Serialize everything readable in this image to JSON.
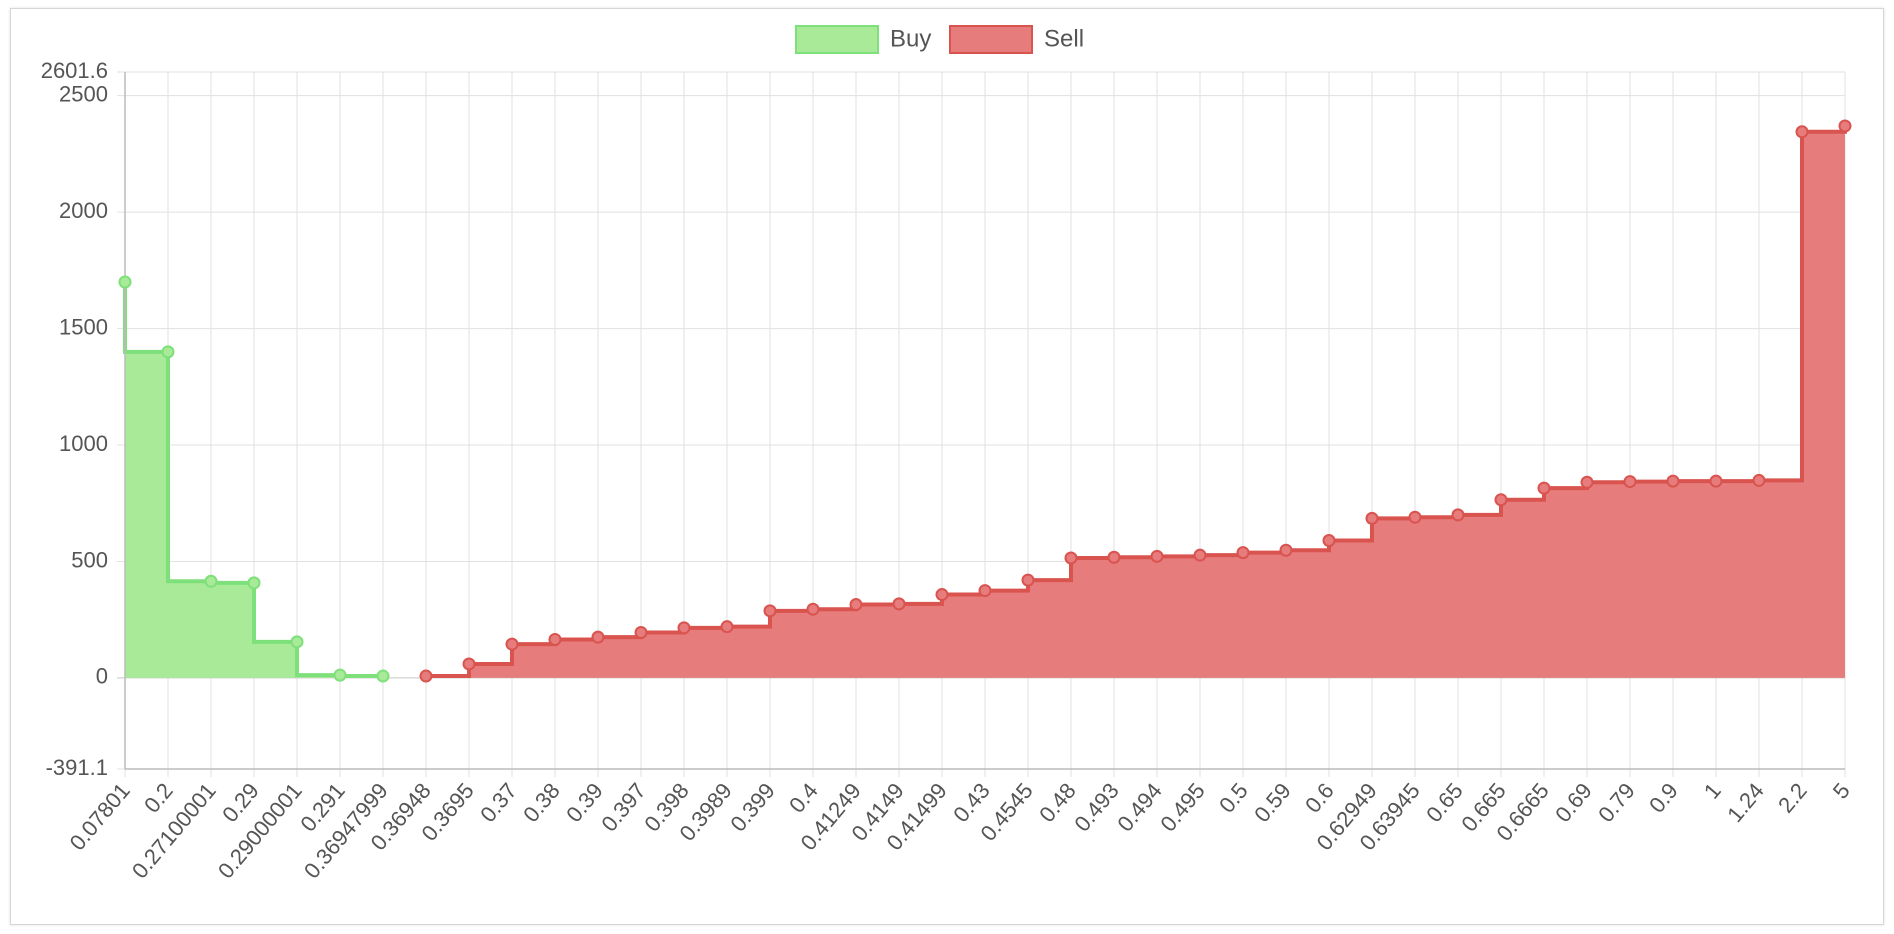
{
  "chart_data": {
    "type": "area",
    "step": true,
    "legend_position": "top-center",
    "grid": true,
    "ylim": [
      -391.1,
      2601.6
    ],
    "y_ticks": [
      -391.1,
      0,
      500,
      1000,
      1500,
      2000,
      2500,
      2601.6
    ],
    "y_tick_labels": [
      "-391.1",
      "0",
      "500",
      "1000",
      "1500",
      "2000",
      "2500",
      "2601.6"
    ],
    "categories": [
      "0.07801",
      "0.2",
      "0.27100001",
      "0.29",
      "0.29000001",
      "0.291",
      "0.36947999",
      "0.36948",
      "0.3695",
      "0.37",
      "0.38",
      "0.39",
      "0.397",
      "0.398",
      "0.3989",
      "0.399",
      "0.4",
      "0.41249",
      "0.4149",
      "0.41499",
      "0.43",
      "0.4545",
      "0.48",
      "0.493",
      "0.494",
      "0.495",
      "0.5",
      "0.59",
      "0.6",
      "0.62949",
      "0.63945",
      "0.65",
      "0.665",
      "0.6665",
      "0.69",
      "0.79",
      "0.9",
      "1",
      "1.24",
      "2.2",
      "5"
    ],
    "series": [
      {
        "name": "Buy",
        "color": "#7ee07a",
        "fill": "#a8ea98",
        "values": [
          1700,
          1400,
          415,
          408,
          155,
          12,
          8,
          null,
          null,
          null,
          null,
          null,
          null,
          null,
          null,
          null,
          null,
          null,
          null,
          null,
          null,
          null,
          null,
          null,
          null,
          null,
          null,
          null,
          null,
          null,
          null,
          null,
          null,
          null,
          null,
          null,
          null,
          null,
          null,
          null,
          null
        ]
      },
      {
        "name": "Sell",
        "color": "#d9534f",
        "fill": "#e67c7c",
        "values": [
          null,
          null,
          null,
          null,
          null,
          null,
          null,
          8,
          60,
          145,
          165,
          175,
          195,
          215,
          220,
          288,
          295,
          315,
          318,
          358,
          375,
          420,
          515,
          518,
          522,
          527,
          538,
          548,
          590,
          685,
          690,
          700,
          765,
          815,
          840,
          843,
          845,
          845,
          848,
          2345,
          2370
        ]
      }
    ]
  }
}
